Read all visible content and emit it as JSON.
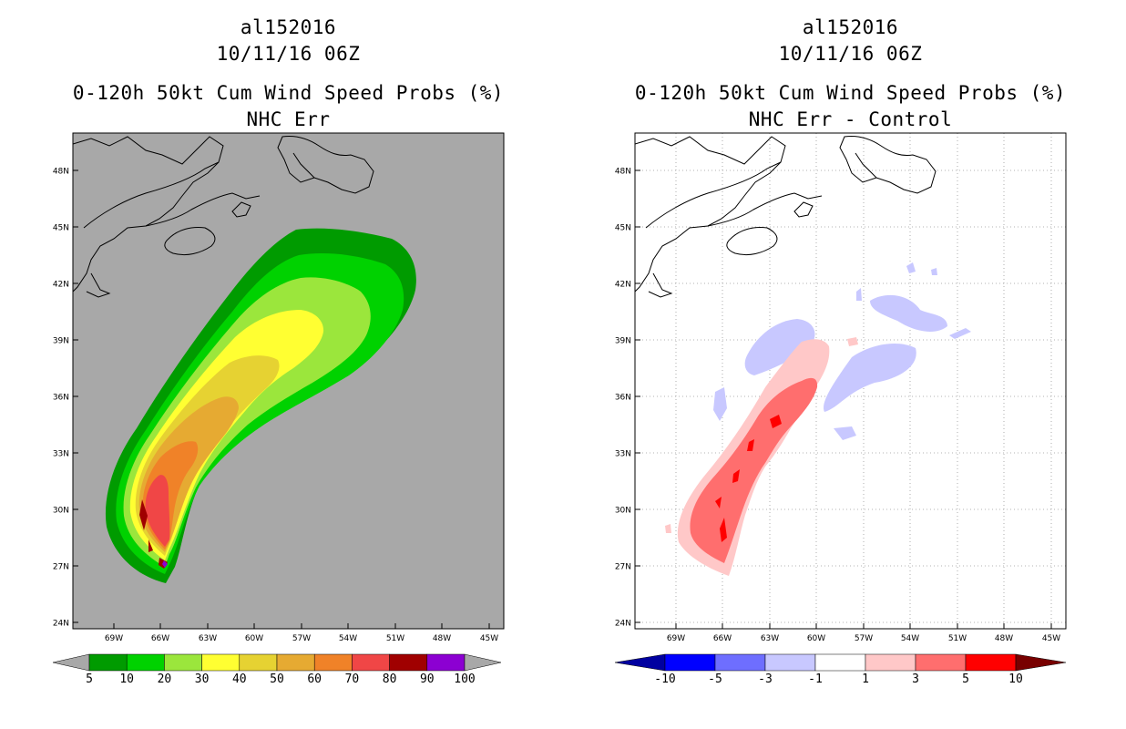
{
  "left": {
    "storm_id": "al152016",
    "datetime": "10/11/16 06Z",
    "product": "0-120h 50kt Cum Wind Speed Probs (%)",
    "subtitle": "NHC Err",
    "colorbar": {
      "labels": [
        "5",
        "10",
        "20",
        "30",
        "40",
        "50",
        "60",
        "70",
        "80",
        "90",
        "100"
      ],
      "colors": [
        "#009b00",
        "#00d200",
        "#9be63c",
        "#ffff32",
        "#e6d232",
        "#e6aa32",
        "#f08228",
        "#f04646",
        "#a00000",
        "#8c00d2"
      ],
      "under_color": "#a8a8a8",
      "over_color": "#a8a8a8"
    }
  },
  "right": {
    "storm_id": "al152016",
    "datetime": "10/11/16 06Z",
    "product": "0-120h 50kt Cum Wind Speed Probs (%)",
    "subtitle": "NHC Err - Control",
    "colorbar": {
      "labels": [
        "-10",
        "-5",
        "-3",
        "-1",
        "1",
        "3",
        "5",
        "10"
      ],
      "colors": [
        "#0000ff",
        "#6e6eff",
        "#c8c8ff",
        "#ffffff",
        "#ffc8c8",
        "#ff6e6e",
        "#ff0000"
      ],
      "under_color": "#0000a0",
      "over_color": "#780000"
    }
  },
  "map": {
    "lat_labels": [
      "48N",
      "45N",
      "42N",
      "39N",
      "36N",
      "33N",
      "30N",
      "27N",
      "24N"
    ],
    "lon_labels": [
      "69W",
      "66W",
      "63W",
      "60W",
      "57W",
      "54W",
      "51W",
      "48W",
      "45W"
    ],
    "left_background": "#a8a8a8",
    "right_background": "#ffffff"
  }
}
